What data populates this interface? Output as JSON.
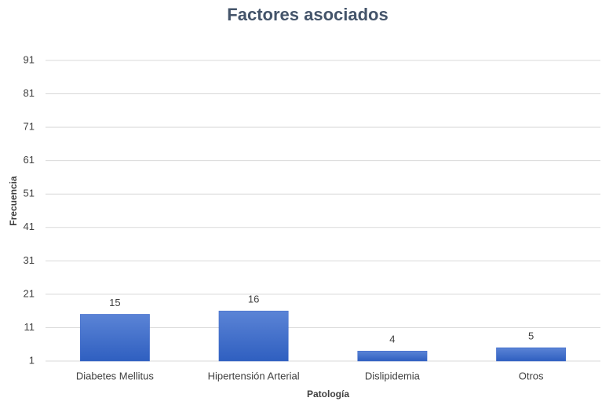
{
  "chart_data": {
    "type": "bar",
    "title": "Factores asociados",
    "x_label": "Patología",
    "y_label": "Frecuencia",
    "categories": [
      "Diabetes Mellitus",
      "Hipertensión Arterial",
      "Dislipidemia",
      "Otros"
    ],
    "values": [
      15,
      16,
      4,
      5
    ],
    "color": "#3a66c8",
    "ylim": [
      1,
      91
    ],
    "yticks": [
      1,
      11,
      21,
      31,
      41,
      51,
      61,
      71,
      81,
      91
    ],
    "grid": true
  }
}
